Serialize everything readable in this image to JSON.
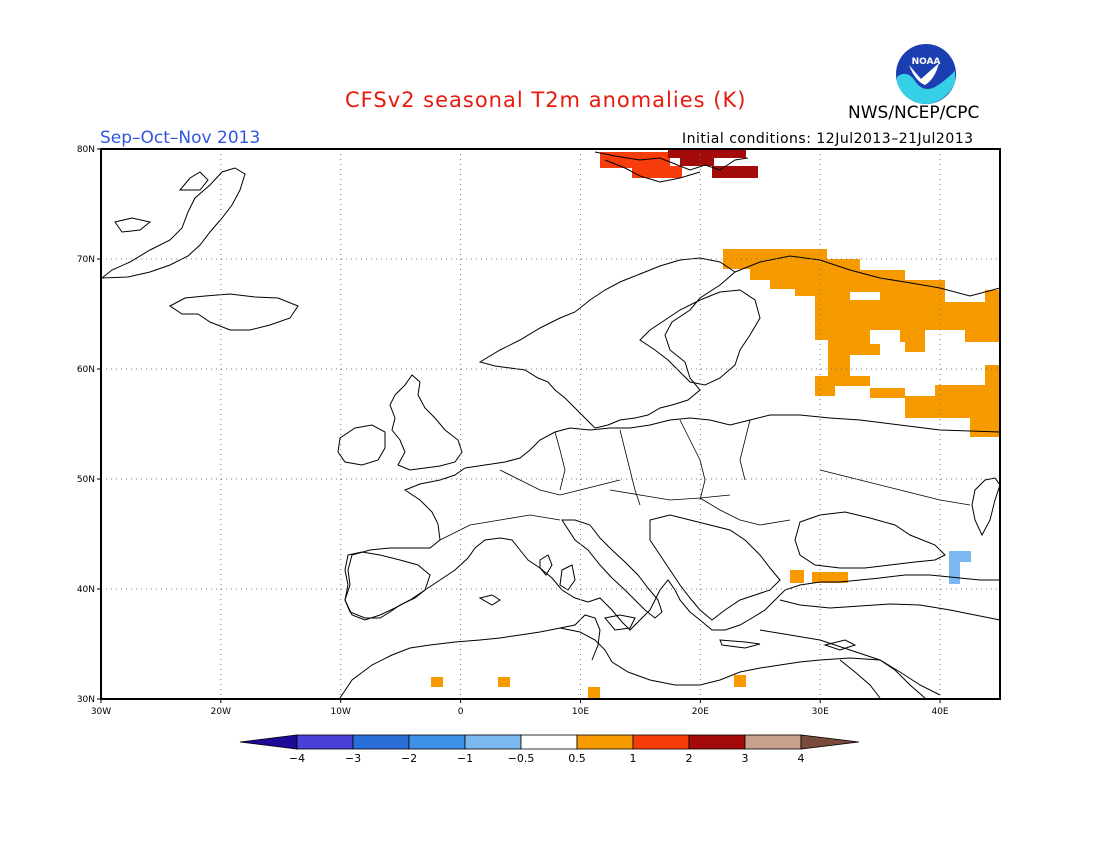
{
  "title": "CFSv2 seasonal T2m anomalies (K)",
  "season": "Sep–Oct–Nov 2013",
  "agency": "NWS/NCEP/CPC",
  "initial_conditions": "Initial conditions: 12Jul2013–21Jul2013",
  "logo_text": "NOAA",
  "map": {
    "projection": "lat-lon",
    "lon_range": [
      -30,
      45
    ],
    "lat_range": [
      30,
      80
    ],
    "lon_ticks": [
      {
        "lon": -30,
        "label": "30W"
      },
      {
        "lon": -20,
        "label": "20W"
      },
      {
        "lon": -10,
        "label": "10W"
      },
      {
        "lon": 0,
        "label": "0"
      },
      {
        "lon": 10,
        "label": "10E"
      },
      {
        "lon": 20,
        "label": "20E"
      },
      {
        "lon": 30,
        "label": "30E"
      },
      {
        "lon": 40,
        "label": "40E"
      }
    ],
    "lat_ticks": [
      {
        "lat": 30,
        "label": "30N"
      },
      {
        "lat": 40,
        "label": "40N"
      },
      {
        "lat": 50,
        "label": "50N"
      },
      {
        "lat": 60,
        "label": "60N"
      },
      {
        "lat": 70,
        "label": "70N"
      },
      {
        "lat": 80,
        "label": "80N"
      }
    ],
    "grid": "dotted"
  },
  "colorbar": {
    "labels": [
      "−4",
      "−3",
      "−2",
      "−1",
      "−0.5",
      "0.5",
      "1",
      "2",
      "3",
      "4"
    ],
    "colors": [
      "#1f0b9a",
      "#4a3fd6",
      "#2a6fd8",
      "#3f92ea",
      "#7cb8f0",
      "#ffffff",
      "#f79a00",
      "#f83d0c",
      "#a30b0b",
      "#c8a08c",
      "#7a4a3a"
    ]
  },
  "anomaly_areas": [
    {
      "region": "Svalbard",
      "category": "1 to 2",
      "color": "#f83d0c",
      "lon": [
        15.5,
        24.5
      ],
      "lat": [
        77.8,
        80.0
      ]
    },
    {
      "region": "Svalbard",
      "category": "2 to 3",
      "color": "#a30b0b",
      "lon": [
        19.5,
        26.5
      ],
      "lat": [
        77.5,
        80.0
      ]
    },
    {
      "region": "NW Russia",
      "category": "0.5 to 1",
      "color": "#f79a00",
      "lon": [
        22.5,
        45.0
      ],
      "lat": [
        54.0,
        70.5
      ]
    },
    {
      "region": "Turkey",
      "category": "0.5 to 1",
      "color": "#f79a00",
      "lon": [
        28.0,
        32.5
      ],
      "lat": [
        40.5,
        41.5
      ]
    },
    {
      "region": "North Africa",
      "category": "0.5 to 1",
      "color": "#f79a00",
      "lon": [
        -2.5,
        23.5
      ],
      "lat": [
        30.0,
        31.5
      ]
    },
    {
      "region": "Caucasus",
      "category": "-1 to -0.5",
      "color": "#7cb8f0",
      "lon": [
        40.5,
        42.5
      ],
      "lat": [
        40.5,
        43.0
      ]
    }
  ]
}
